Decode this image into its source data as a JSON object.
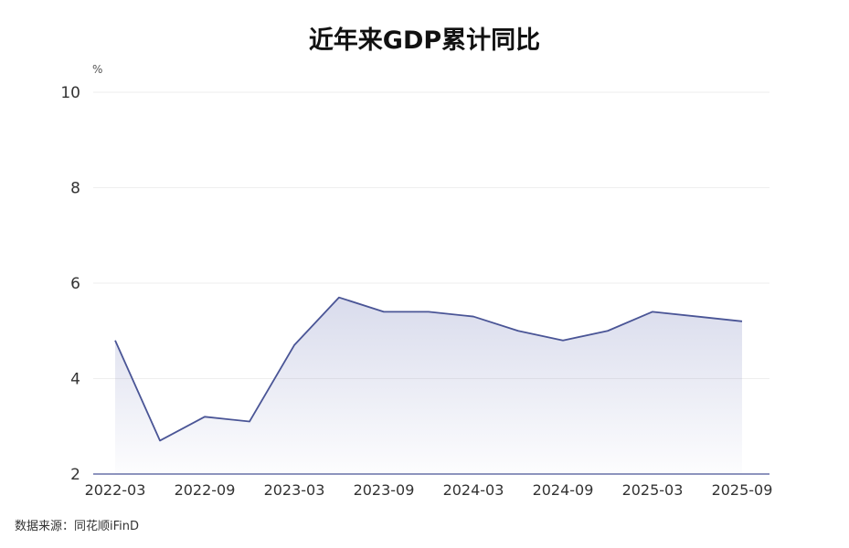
{
  "chart_data": {
    "type": "area",
    "title": "近年来GDP累计同比",
    "ylabel": "%",
    "xlabel": "",
    "ylim": [
      2,
      10
    ],
    "yticks": [
      2,
      4,
      6,
      8,
      10
    ],
    "x_ticks": [
      "2022-03",
      "2022-09",
      "2023-03",
      "2023-09",
      "2024-03",
      "2024-09",
      "2025-03",
      "2025-09"
    ],
    "x": [
      "2022-03",
      "2022-06",
      "2022-09",
      "2022-12",
      "2023-03",
      "2023-06",
      "2023-09",
      "2023-12",
      "2024-03",
      "2024-06",
      "2024-09",
      "2024-12",
      "2025-03",
      "2025-06",
      "2025-09"
    ],
    "values": [
      4.8,
      2.7,
      3.2,
      3.1,
      4.7,
      5.7,
      5.4,
      5.4,
      5.3,
      5.0,
      4.8,
      5.0,
      5.4,
      5.3,
      5.2
    ],
    "grid": true,
    "legend": "none",
    "colors": {
      "line": "#4a5596",
      "fill": "#8890c4",
      "grid": "#eeeeee",
      "axis": "#4a5596"
    }
  },
  "source_note": "数据来源：同花顺iFinD"
}
